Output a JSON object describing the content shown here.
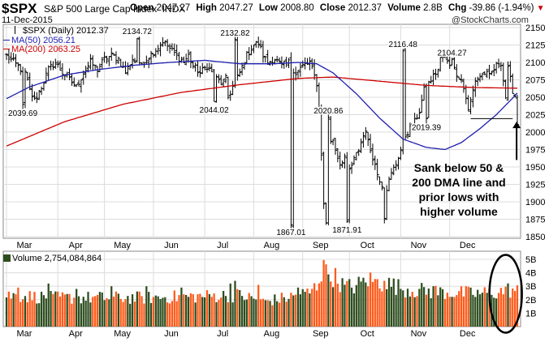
{
  "header": {
    "symbol": "$SPX",
    "name": "S&P 500 Large Cap Index",
    "exchange": "INDX",
    "date": "11-Dec-2015",
    "open_label": "Open",
    "open": "2047.27",
    "high_label": "High",
    "high": "2047.27",
    "low_label": "Low",
    "low": "2008.80",
    "close_label": "Close",
    "close": "2012.37",
    "volume_label": "Volume",
    "volume": "2.8B",
    "chg_label": "Chg",
    "chg": "-39.86 (-1.94%)",
    "watermark": "@StockCharts.com"
  },
  "legend": {
    "price": "$SPX (Daily) 2012.37",
    "ma50": "MA(50) 2056.21",
    "ma200": "MA(200) 2063.25",
    "volume": "Volume 2,754,084,864"
  },
  "annotation": [
    "Sank below 50 &",
    "200 DMA line and",
    "prior lows with",
    "higher volume"
  ],
  "colors": {
    "up": "#2d4d1e",
    "down": "#ff5a1a",
    "price_bar": "#000000",
    "ma50": "#1f1fb0",
    "ma200": "#cc0000",
    "grid": "#dcdcdc",
    "frame": "#888888",
    "support_line": "#000000",
    "arrow": "#000000"
  },
  "chart_data": {
    "type": "ohlc_with_volume",
    "period": "daily",
    "x_months": [
      "Mar",
      "Apr",
      "May",
      "Jun",
      "Jul",
      "Aug",
      "Sep",
      "Oct",
      "Nov",
      "Dec"
    ],
    "y_axis_price": {
      "min": 1850,
      "max": 2150,
      "ticks": [
        1850,
        1875,
        1900,
        1925,
        1950,
        1975,
        2000,
        2025,
        2050,
        2075,
        2100,
        2125,
        2150
      ]
    },
    "y_axis_volume": {
      "ticks": [
        "1B",
        "2B",
        "3B",
        "4B",
        "5B"
      ],
      "values_billion": [
        1,
        2,
        3,
        4,
        5
      ]
    },
    "price_annotations": [
      {
        "date": "2015-03-11",
        "value": 2039.69,
        "label": "2039.69"
      },
      {
        "date": "2015-05-21",
        "value": 2134.72,
        "label": "2134.72"
      },
      {
        "date": "2015-07-07",
        "value": 2044.02,
        "label": "2044.02"
      },
      {
        "date": "2015-07-20",
        "value": 2132.82,
        "label": "2132.82"
      },
      {
        "date": "2015-08-24",
        "value": 1867.01,
        "label": "1867.01"
      },
      {
        "date": "2015-09-17",
        "value": 2020.86,
        "label": "2020.86"
      },
      {
        "date": "2015-09-29",
        "value": 1871.91,
        "label": "1871.91"
      },
      {
        "date": "2015-11-03",
        "value": 2116.48,
        "label": "2116.48"
      },
      {
        "date": "2015-11-16",
        "value": 2019.39,
        "label": "2019.39"
      },
      {
        "date": "2015-12-02",
        "value": 2104.27,
        "label": "2104.27"
      }
    ],
    "support_level": 2019.39,
    "close_anchors": [
      {
        "d": 0,
        "v": 2110
      },
      {
        "d": 3,
        "v": 2100
      },
      {
        "d": 8,
        "v": 2085
      },
      {
        "d": 10,
        "v": 2060
      },
      {
        "d": 12,
        "v": 2045
      },
      {
        "d": 15,
        "v": 2065
      },
      {
        "d": 18,
        "v": 2090
      },
      {
        "d": 21,
        "v": 2100
      },
      {
        "d": 24,
        "v": 2085
      },
      {
        "d": 27,
        "v": 2075
      },
      {
        "d": 30,
        "v": 2065
      },
      {
        "d": 33,
        "v": 2085
      },
      {
        "d": 36,
        "v": 2100
      },
      {
        "d": 39,
        "v": 2090
      },
      {
        "d": 42,
        "v": 2105
      },
      {
        "d": 45,
        "v": 2110
      },
      {
        "d": 48,
        "v": 2105
      },
      {
        "d": 51,
        "v": 2085
      },
      {
        "d": 54,
        "v": 2105
      },
      {
        "d": 57,
        "v": 2095
      },
      {
        "d": 60,
        "v": 2105
      },
      {
        "d": 63,
        "v": 2115
      },
      {
        "d": 66,
        "v": 2125
      },
      {
        "d": 67,
        "v": 2131
      },
      {
        "d": 70,
        "v": 2120
      },
      {
        "d": 73,
        "v": 2110
      },
      {
        "d": 76,
        "v": 2100
      },
      {
        "d": 78,
        "v": 2110
      },
      {
        "d": 80,
        "v": 2095
      },
      {
        "d": 83,
        "v": 2085
      },
      {
        "d": 86,
        "v": 2095
      },
      {
        "d": 89,
        "v": 2080
      },
      {
        "d": 92,
        "v": 2070
      },
      {
        "d": 94,
        "v": 2076
      },
      {
        "d": 95,
        "v": 2050
      },
      {
        "d": 97,
        "v": 2065
      },
      {
        "d": 100,
        "v": 2085
      },
      {
        "d": 103,
        "v": 2110
      },
      {
        "d": 106,
        "v": 2125
      },
      {
        "d": 108,
        "v": 2128
      },
      {
        "d": 110,
        "v": 2110
      },
      {
        "d": 112,
        "v": 2100
      },
      {
        "d": 115,
        "v": 2105
      },
      {
        "d": 118,
        "v": 2095
      },
      {
        "d": 121,
        "v": 2100
      },
      {
        "d": 124,
        "v": 2085
      },
      {
        "d": 127,
        "v": 2095
      },
      {
        "d": 130,
        "v": 2100
      },
      {
        "d": 132,
        "v": 2080
      },
      {
        "d": 133,
        "v": 2070
      },
      {
        "d": 134,
        "v": 2035
      },
      {
        "d": 135,
        "v": 1970
      },
      {
        "d": 136,
        "v": 1895
      },
      {
        "d": 137,
        "v": 1870
      },
      {
        "d": 138,
        "v": 1940
      },
      {
        "d": 139,
        "v": 1985
      },
      {
        "d": 140,
        "v": 1990
      },
      {
        "d": 141,
        "v": 1975
      },
      {
        "d": 143,
        "v": 1955
      },
      {
        "d": 145,
        "v": 1965
      },
      {
        "d": 147,
        "v": 1945
      },
      {
        "d": 149,
        "v": 1960
      },
      {
        "d": 151,
        "v": 1975
      },
      {
        "d": 153,
        "v": 1995
      },
      {
        "d": 154,
        "v": 2005
      },
      {
        "d": 155,
        "v": 1985
      },
      {
        "d": 157,
        "v": 1965
      },
      {
        "d": 159,
        "v": 1940
      },
      {
        "d": 161,
        "v": 1925
      },
      {
        "d": 162,
        "v": 1880
      },
      {
        "d": 163,
        "v": 1920
      },
      {
        "d": 165,
        "v": 1940
      },
      {
        "d": 167,
        "v": 1955
      },
      {
        "d": 169,
        "v": 1975
      },
      {
        "d": 171,
        "v": 1995
      },
      {
        "d": 173,
        "v": 2005
      },
      {
        "d": 175,
        "v": 2015
      },
      {
        "d": 177,
        "v": 2030
      },
      {
        "d": 179,
        "v": 2060
      },
      {
        "d": 181,
        "v": 2070
      },
      {
        "d": 183,
        "v": 2080
      },
      {
        "d": 185,
        "v": 2090
      },
      {
        "d": 186,
        "v": 2105
      },
      {
        "d": 187,
        "v": 2110
      },
      {
        "d": 189,
        "v": 2100
      },
      {
        "d": 191,
        "v": 2095
      },
      {
        "d": 193,
        "v": 2085
      },
      {
        "d": 195,
        "v": 2075
      },
      {
        "d": 197,
        "v": 2050
      },
      {
        "d": 198,
        "v": 2030
      },
      {
        "d": 199,
        "v": 2045
      },
      {
        "d": 201,
        "v": 2075
      },
      {
        "d": 203,
        "v": 2080
      },
      {
        "d": 205,
        "v": 2085
      },
      {
        "d": 207,
        "v": 2080
      },
      {
        "d": 209,
        "v": 2090
      },
      {
        "d": 211,
        "v": 2100
      },
      {
        "d": 212,
        "v": 2100
      },
      {
        "d": 213,
        "v": 2075
      },
      {
        "d": 214,
        "v": 2050
      },
      {
        "d": 215,
        "v": 2090
      },
      {
        "d": 216,
        "v": 2075
      },
      {
        "d": 217,
        "v": 2060
      },
      {
        "d": 218,
        "v": 2052
      },
      {
        "d": 219,
        "v": 2012
      }
    ],
    "ma50_anchors": [
      {
        "d": 0,
        "v": 2048
      },
      {
        "d": 10,
        "v": 2065
      },
      {
        "d": 25,
        "v": 2082
      },
      {
        "d": 40,
        "v": 2090
      },
      {
        "d": 55,
        "v": 2096
      },
      {
        "d": 70,
        "v": 2100
      },
      {
        "d": 85,
        "v": 2103
      },
      {
        "d": 100,
        "v": 2098
      },
      {
        "d": 115,
        "v": 2098
      },
      {
        "d": 125,
        "v": 2100
      },
      {
        "d": 133,
        "v": 2098
      },
      {
        "d": 140,
        "v": 2085
      },
      {
        "d": 150,
        "v": 2055
      },
      {
        "d": 160,
        "v": 2020
      },
      {
        "d": 170,
        "v": 1990
      },
      {
        "d": 180,
        "v": 1978
      },
      {
        "d": 188,
        "v": 1975
      },
      {
        "d": 195,
        "v": 1985
      },
      {
        "d": 203,
        "v": 2005
      },
      {
        "d": 210,
        "v": 2025
      },
      {
        "d": 215,
        "v": 2042
      },
      {
        "d": 219,
        "v": 2056
      }
    ],
    "ma200_anchors": [
      {
        "d": 0,
        "v": 1980
      },
      {
        "d": 25,
        "v": 2015
      },
      {
        "d": 50,
        "v": 2040
      },
      {
        "d": 75,
        "v": 2057
      },
      {
        "d": 100,
        "v": 2068
      },
      {
        "d": 125,
        "v": 2077
      },
      {
        "d": 140,
        "v": 2079
      },
      {
        "d": 160,
        "v": 2073
      },
      {
        "d": 180,
        "v": 2067
      },
      {
        "d": 200,
        "v": 2064
      },
      {
        "d": 219,
        "v": 2063
      }
    ],
    "volume_anchors": [
      {
        "d": 0,
        "v": 2.4
      },
      {
        "d": 20,
        "v": 2.2
      },
      {
        "d": 40,
        "v": 2.2
      },
      {
        "d": 60,
        "v": 2.2
      },
      {
        "d": 80,
        "v": 2.3
      },
      {
        "d": 100,
        "v": 2.4
      },
      {
        "d": 110,
        "v": 1.9
      },
      {
        "d": 120,
        "v": 2.2
      },
      {
        "d": 130,
        "v": 2.6
      },
      {
        "d": 133,
        "v": 3.1
      },
      {
        "d": 135,
        "v": 4.2
      },
      {
        "d": 136,
        "v": 5.4
      },
      {
        "d": 137,
        "v": 4.0
      },
      {
        "d": 140,
        "v": 3.9
      },
      {
        "d": 145,
        "v": 3.0
      },
      {
        "d": 150,
        "v": 3.1
      },
      {
        "d": 155,
        "v": 3.6
      },
      {
        "d": 160,
        "v": 3.3
      },
      {
        "d": 165,
        "v": 3.2
      },
      {
        "d": 170,
        "v": 2.9
      },
      {
        "d": 180,
        "v": 2.7
      },
      {
        "d": 190,
        "v": 2.6
      },
      {
        "d": 200,
        "v": 2.5
      },
      {
        "d": 210,
        "v": 2.6
      },
      {
        "d": 215,
        "v": 2.8
      },
      {
        "d": 219,
        "v": 2.75
      }
    ],
    "volume_spikes": [
      {
        "d": 5,
        "v": 2.9
      },
      {
        "d": 18,
        "v": 3.2
      },
      {
        "d": 30,
        "v": 2.8
      },
      {
        "d": 45,
        "v": 3.0
      },
      {
        "d": 60,
        "v": 3.0
      },
      {
        "d": 75,
        "v": 2.9
      },
      {
        "d": 96,
        "v": 3.2
      },
      {
        "d": 98,
        "v": 3.4
      },
      {
        "d": 108,
        "v": 3.1
      },
      {
        "d": 125,
        "v": 2.9
      },
      {
        "d": 162,
        "v": 3.4
      },
      {
        "d": 183,
        "v": 3.0
      },
      {
        "d": 195,
        "v": 3.0
      }
    ],
    "month_boundaries": [
      {
        "label": "Mar",
        "d": 0
      },
      {
        "label": "Apr",
        "d": 22
      },
      {
        "label": "May",
        "d": 42
      },
      {
        "label": "Jun",
        "d": 63
      },
      {
        "label": "Jul",
        "d": 85
      },
      {
        "label": "Aug",
        "d": 106
      },
      {
        "label": "Sep",
        "d": 127
      },
      {
        "label": "Oct",
        "d": 147
      },
      {
        "label": "Nov",
        "d": 169
      },
      {
        "label": "Dec",
        "d": 190
      }
    ],
    "total_days": 220
  }
}
